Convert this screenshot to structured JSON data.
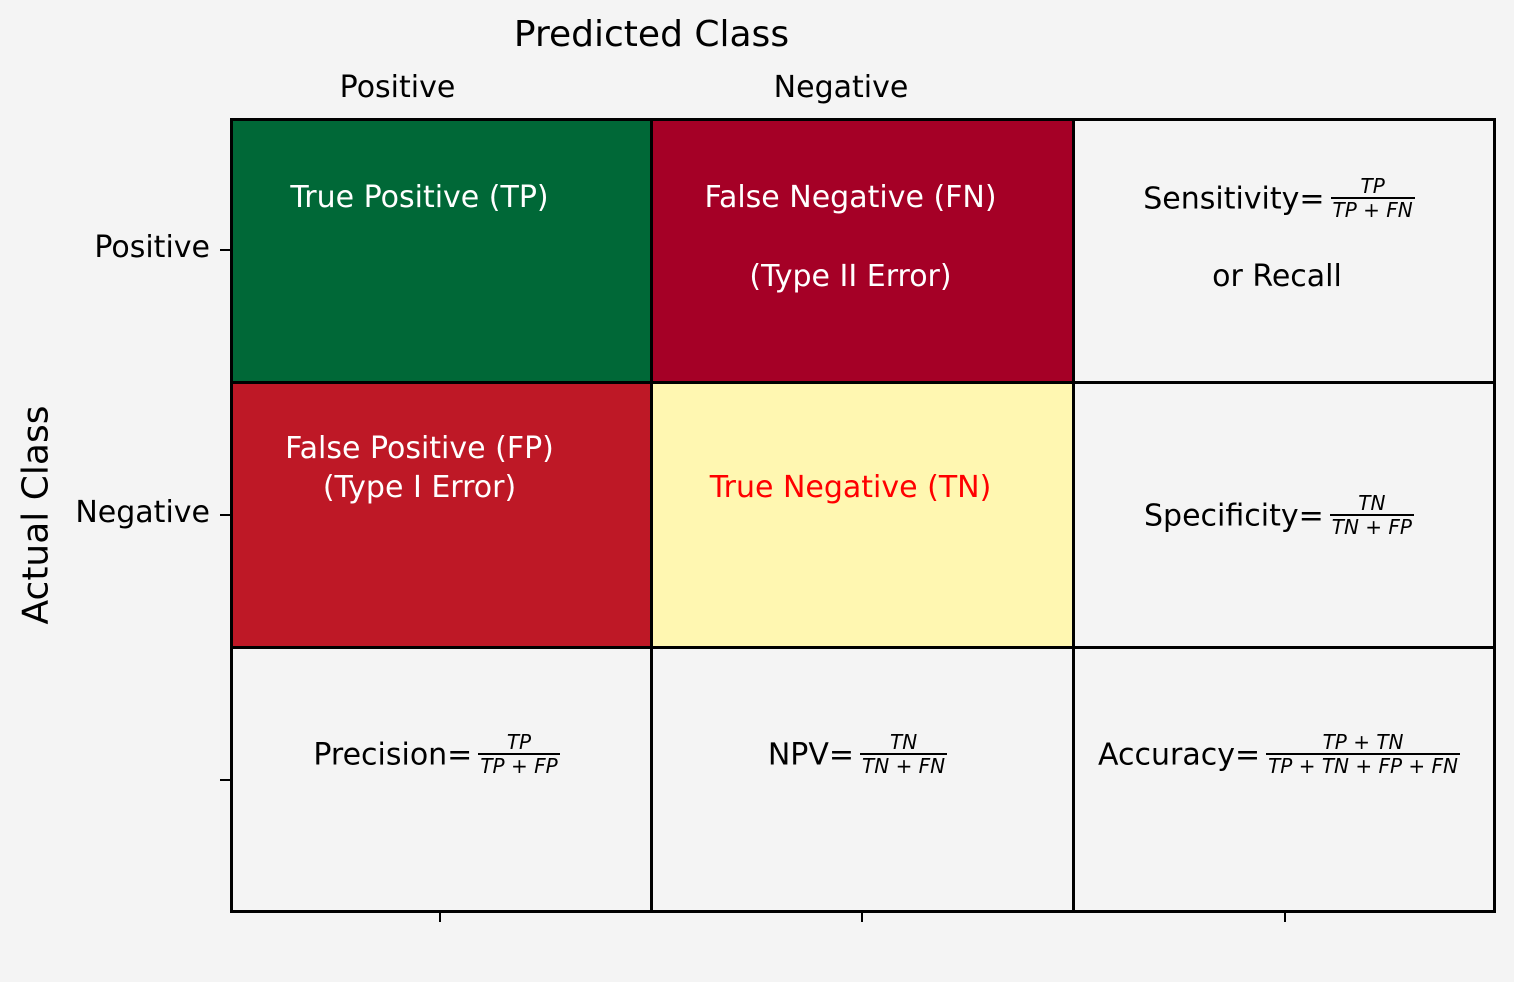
{
  "header": {
    "predicted_title": "Predicted Class",
    "col_positive": "Positive",
    "col_negative": "Negative"
  },
  "rows": {
    "actual_title": "Actual Class",
    "row_positive": "Positive",
    "row_negative": "Negative"
  },
  "colors": {
    "tp": "#006837",
    "fn": "#a50026",
    "fp": "#be1826",
    "tn": "#fff7b1",
    "neutral": "#f4f4f4"
  },
  "cells": {
    "tp": {
      "line1": "True Positive (TP)"
    },
    "fn": {
      "line1": "False Negative (FN)",
      "line2": "(Type II Error)"
    },
    "fp": {
      "line1": "False Positive (FP)",
      "line2": "(Type I Error)"
    },
    "tn": {
      "line1": "True Negative (TN)"
    },
    "sensitivity": {
      "label": "Sensitivity=",
      "num": "TP",
      "den": "TP + FN",
      "line2": "or Recall"
    },
    "specificity": {
      "label": "Specificity=",
      "num": "TN",
      "den": "TN + FP"
    },
    "precision": {
      "label": "Precision=",
      "num": "TP",
      "den": "TP + FP"
    },
    "npv": {
      "label": "NPV=",
      "num": "TN",
      "den": "TN + FN"
    },
    "accuracy": {
      "label": "Accuracy=",
      "num": "TP + TN",
      "den": "TP + TN + FP + FN"
    }
  }
}
